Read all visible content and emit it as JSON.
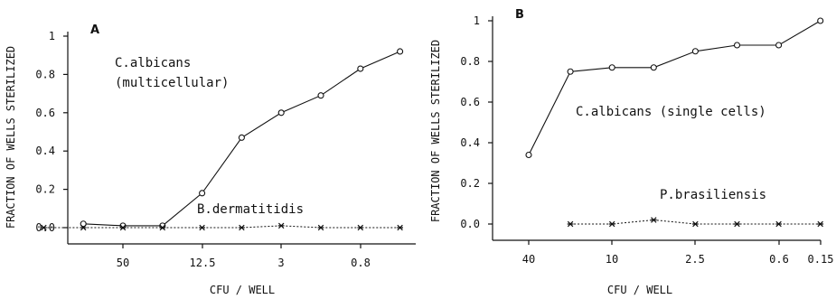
{
  "chart_data": [
    {
      "panel_label": "A",
      "type": "line",
      "xlabel": "CFU / WELL",
      "ylabel": "FRACTION OF WELLS STERILIZED",
      "x_ticks": [
        "50",
        "12.5",
        "3",
        "0.8"
      ],
      "y_ticks": [
        "0.0",
        "0.2",
        "0.4",
        "0.6",
        "0.8",
        "1"
      ],
      "ylim": [
        0,
        1
      ],
      "series": [
        {
          "name": "C.albicans (multicellular)",
          "label_lines": [
            "C.albicans",
            "(multicellular)"
          ],
          "style": "solid-circle",
          "x": [
            100,
            50,
            25,
            12.5,
            6.25,
            3.125,
            1.5625,
            0.78125,
            0.390625
          ],
          "y": [
            0.02,
            0.01,
            0.01,
            0.18,
            0.47,
            0.6,
            0.69,
            0.83,
            0.92
          ]
        },
        {
          "name": "B.dermatitidis",
          "label_lines": [
            "B.dermatitidis"
          ],
          "style": "dashed-star",
          "x": [
            200,
            100,
            50,
            25,
            12.5,
            6.25,
            3.125,
            1.5625,
            0.78125,
            0.390625
          ],
          "y": [
            0.0,
            0.0,
            0.0,
            0.0,
            0.0,
            0.0,
            0.01,
            0.0,
            0.0,
            0.0
          ]
        }
      ]
    },
    {
      "panel_label": "B",
      "type": "line",
      "xlabel": "CFU / WELL",
      "ylabel": "FRACTION OF WELLS STERILIZED",
      "x_ticks": [
        "40",
        "10",
        "2.5",
        "0.6",
        "0.15"
      ],
      "y_ticks": [
        "0.0",
        "0.2",
        "0.4",
        "0.6",
        "0.8",
        "1"
      ],
      "ylim": [
        0,
        1
      ],
      "series": [
        {
          "name": "C.albicans (single cells)",
          "label_lines": [
            "C.albicans (single cells)"
          ],
          "style": "solid-circle",
          "x": [
            40,
            20,
            10,
            5,
            2.5,
            1.25,
            0.625,
            0.3125
          ],
          "y": [
            0.34,
            0.75,
            0.77,
            0.77,
            0.85,
            0.88,
            0.88,
            1.0
          ]
        },
        {
          "name": "P.brasiliensis",
          "label_lines": [
            "P.brasiliensis"
          ],
          "style": "dashed-star",
          "x": [
            20,
            10,
            5,
            2.5,
            1.25,
            0.625,
            0.3125
          ],
          "y": [
            0.0,
            0.0,
            0.02,
            0.0,
            0.0,
            0.0,
            0.0
          ]
        }
      ]
    }
  ]
}
